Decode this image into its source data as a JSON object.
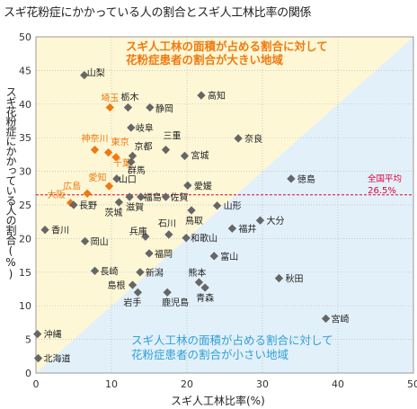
{
  "title": "スギ花粉症にかかっている人の割合とスギ人工林比率の関係",
  "chart_data": {
    "type": "scatter",
    "xlabel": "スギ人工林比率(%)",
    "ylabel": "スギ花粉症にかかっている人の割合(%)",
    "xlim": [
      0,
      50
    ],
    "ylim": [
      0,
      50
    ],
    "xticks": [
      "0",
      "10",
      "20",
      "30",
      "40",
      "50"
    ],
    "yticks": [
      "0",
      "5",
      "10",
      "15",
      "20",
      "25",
      "30",
      "35",
      "40",
      "45",
      "50"
    ],
    "grid": "dotted",
    "colors": {
      "upper_region": "#fdf7d6",
      "lower_region": "#e2f0fa",
      "point": "#666666",
      "highlight": "#f07a10",
      "reference": "#e0003c",
      "upper_text": "#f07a10",
      "lower_text": "#2fa1d8"
    },
    "region_labels": {
      "upper": [
        "スギ人工林の面積が占める割合に対して",
        "花粉症患者の割合が大きい地域"
      ],
      "lower": [
        "スギ人工林の面積が占める割合に対して",
        "花粉症患者の割合が小さい地域"
      ]
    },
    "reference_line": {
      "y": 26.5,
      "label": "全国平均",
      "value_label": "26.5%"
    },
    "points": [
      {
        "name": "山梨",
        "x": 6.4,
        "y": 44.3,
        "highlight": false
      },
      {
        "name": "栃木",
        "x": 12.2,
        "y": 39.5,
        "highlight": false
      },
      {
        "name": "埼玉",
        "x": 9.8,
        "y": 39.5,
        "highlight": true
      },
      {
        "name": "静岡",
        "x": 15.1,
        "y": 39.5,
        "highlight": false
      },
      {
        "name": "高知",
        "x": 21.9,
        "y": 41.3,
        "highlight": false
      },
      {
        "name": "岐阜",
        "x": 12.6,
        "y": 36.5,
        "highlight": false
      },
      {
        "name": "神奈川",
        "x": 7.8,
        "y": 33.2,
        "highlight": true
      },
      {
        "name": "東京",
        "x": 9.6,
        "y": 32.8,
        "highlight": true
      },
      {
        "name": "千葉",
        "x": 10.6,
        "y": 32.1,
        "highlight": true
      },
      {
        "name": "京都",
        "x": 12.8,
        "y": 32.3,
        "highlight": false
      },
      {
        "name": "三重",
        "x": 17.2,
        "y": 33.2,
        "highlight": false
      },
      {
        "name": "奈良",
        "x": 26.8,
        "y": 34.9,
        "highlight": false
      },
      {
        "name": "群馬",
        "x": 12.6,
        "y": 31.4,
        "highlight": false
      },
      {
        "name": "宮城",
        "x": 19.7,
        "y": 32.3,
        "highlight": false
      },
      {
        "name": "広島",
        "x": 6.8,
        "y": 26.7,
        "highlight": true
      },
      {
        "name": "愛知",
        "x": 9.7,
        "y": 27.8,
        "highlight": true
      },
      {
        "name": "山口",
        "x": 10.7,
        "y": 28.9,
        "highlight": false
      },
      {
        "name": "愛媛",
        "x": 20.1,
        "y": 27.9,
        "highlight": false
      },
      {
        "name": "徳島",
        "x": 33.8,
        "y": 28.9,
        "highlight": false
      },
      {
        "name": "大阪",
        "x": 4.6,
        "y": 25.3,
        "highlight": true
      },
      {
        "name": "長野",
        "x": 5.0,
        "y": 25.0,
        "highlight": false
      },
      {
        "name": "福島",
        "x": 13.9,
        "y": 26.2,
        "highlight": false
      },
      {
        "name": "佐賀",
        "x": 17.2,
        "y": 26.2,
        "highlight": false
      },
      {
        "name": "茨城",
        "x": 11.0,
        "y": 25.4,
        "highlight": false
      },
      {
        "name": "滋賀",
        "x": 12.4,
        "y": 26.2,
        "highlight": false
      },
      {
        "name": "鳥取",
        "x": 20.6,
        "y": 24.2,
        "highlight": false
      },
      {
        "name": "山形",
        "x": 24.0,
        "y": 24.9,
        "highlight": false
      },
      {
        "name": "大分",
        "x": 29.7,
        "y": 22.7,
        "highlight": false
      },
      {
        "name": "香川",
        "x": 1.2,
        "y": 21.3,
        "highlight": false
      },
      {
        "name": "兵庫",
        "x": 14.5,
        "y": 20.3,
        "highlight": false
      },
      {
        "name": "石川",
        "x": 17.6,
        "y": 20.6,
        "highlight": false
      },
      {
        "name": "福井",
        "x": 26.0,
        "y": 21.5,
        "highlight": false
      },
      {
        "name": "岡山",
        "x": 6.5,
        "y": 19.6,
        "highlight": false
      },
      {
        "name": "和歌山",
        "x": 19.9,
        "y": 20.1,
        "highlight": false
      },
      {
        "name": "福岡",
        "x": 15.0,
        "y": 17.8,
        "highlight": false
      },
      {
        "name": "富山",
        "x": 23.6,
        "y": 17.4,
        "highlight": false
      },
      {
        "name": "長崎",
        "x": 7.8,
        "y": 15.2,
        "highlight": false
      },
      {
        "name": "新潟",
        "x": 13.8,
        "y": 15.0,
        "highlight": false
      },
      {
        "name": "熊本",
        "x": 21.6,
        "y": 13.5,
        "highlight": false
      },
      {
        "name": "秋田",
        "x": 32.2,
        "y": 14.1,
        "highlight": false
      },
      {
        "name": "島根",
        "x": 12.8,
        "y": 13.1,
        "highlight": false
      },
      {
        "name": "青森",
        "x": 22.4,
        "y": 12.7,
        "highlight": false
      },
      {
        "name": "岩手",
        "x": 13.5,
        "y": 12.0,
        "highlight": false
      },
      {
        "name": "鹿児島",
        "x": 17.4,
        "y": 12.0,
        "highlight": false
      },
      {
        "name": "宮崎",
        "x": 38.4,
        "y": 8.1,
        "highlight": false
      },
      {
        "name": "沖縄",
        "x": 0.2,
        "y": 5.8,
        "highlight": false
      },
      {
        "name": "北海道",
        "x": 0.3,
        "y": 2.2,
        "highlight": false
      }
    ]
  }
}
